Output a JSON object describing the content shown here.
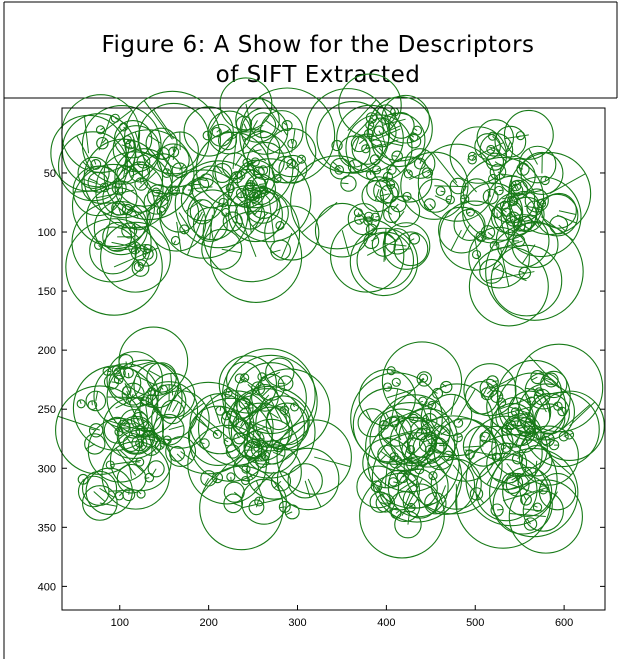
{
  "figure": {
    "caption": [
      "Figure 6: A Show for the Descriptors",
      "of SIFT Extracted"
    ],
    "axes": {
      "xlim": [
        35,
        646
      ],
      "ylim": [
        -5,
        420
      ],
      "reversed_y": true,
      "xticks": [
        100,
        200,
        300,
        400,
        500,
        600
      ],
      "yticks": [
        50,
        100,
        150,
        200,
        250,
        300,
        350,
        400
      ]
    }
  }
}
